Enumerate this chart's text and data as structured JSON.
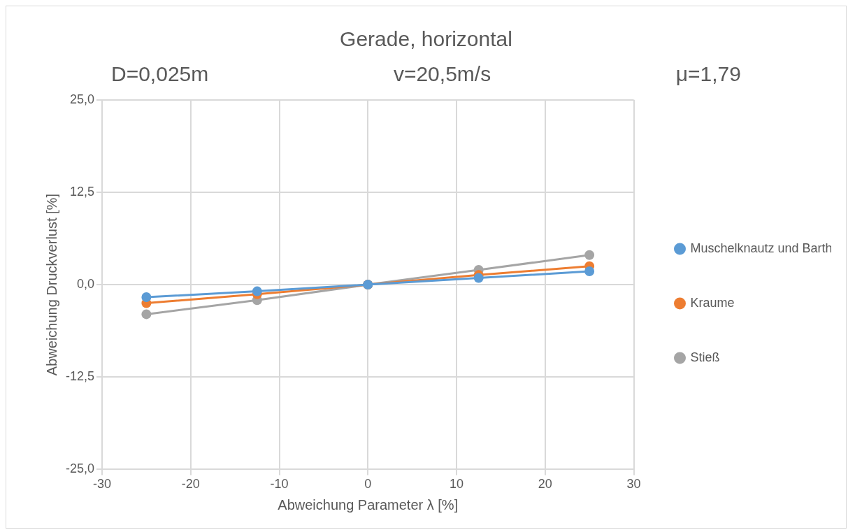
{
  "chart_data": {
    "type": "line",
    "title": "Gerade, horizontal",
    "annotations": [
      "D=0,025m",
      "v=20,5m/s",
      "μ=1,79"
    ],
    "xlabel": "Abweichung Parameter λ [%]",
    "ylabel": "Abweichung Druckverlust [%]",
    "x": [
      -25,
      -12.5,
      0,
      12.5,
      25
    ],
    "series": [
      {
        "name": "Muschelknautz und Barth",
        "color": "#5b9bd5",
        "values": [
          -1.7,
          -0.9,
          0,
          0.9,
          1.8
        ]
      },
      {
        "name": "Kraume",
        "color": "#ed7d31",
        "values": [
          -2.5,
          -1.3,
          0,
          1.3,
          2.5
        ]
      },
      {
        "name": "Stieß",
        "color": "#a5a5a5",
        "values": [
          -4.0,
          -2.1,
          0,
          2.0,
          4.0
        ]
      }
    ],
    "xlim": [
      -30,
      30
    ],
    "xticks": [
      -30,
      -20,
      -10,
      0,
      10,
      20,
      30
    ],
    "ylim": [
      -25,
      25
    ],
    "yticks": [
      {
        "value": -25,
        "label": "-25,0"
      },
      {
        "value": -12.5,
        "label": "-12,5"
      },
      {
        "value": 0,
        "label": "0,0"
      },
      {
        "value": 12.5,
        "label": "12,5"
      },
      {
        "value": 25,
        "label": "25,0"
      }
    ],
    "grid": true,
    "legend": "right",
    "marker": "circle",
    "line_style": "solid"
  }
}
